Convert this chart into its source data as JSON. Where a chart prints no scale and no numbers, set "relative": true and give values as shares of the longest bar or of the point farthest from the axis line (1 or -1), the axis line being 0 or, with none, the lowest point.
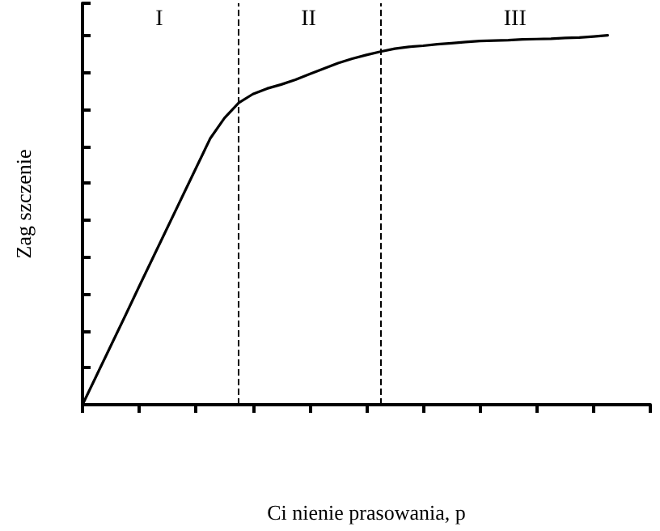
{
  "chart_data": {
    "type": "line",
    "relative": true,
    "xlabel": "Ci nienie prasowania, p",
    "ylabel": "Zag szczenie",
    "line_style": "solid",
    "categories": [
      null,
      null,
      null,
      null,
      null,
      null,
      null,
      null,
      null,
      null,
      null,
      null,
      null,
      null,
      null,
      null,
      null,
      null,
      null,
      null,
      null,
      null,
      null,
      null,
      null,
      null,
      null,
      null,
      null,
      null,
      null,
      null,
      null,
      null,
      null,
      null,
      null,
      null,
      null,
      null,
      null
    ],
    "series": [
      {
        "color": "#000000",
        "values": [
          0,
          0.08,
          0.16,
          0.24,
          0.321,
          0.401,
          0.481,
          0.561,
          0.641,
          0.721,
          0.776,
          0.817,
          0.841,
          0.856,
          0.867,
          0.88,
          0.895,
          0.91,
          0.925,
          0.937,
          0.947,
          0.956,
          0.964,
          0.969,
          0.972,
          0.976,
          0.979,
          0.982,
          0.985,
          0.986,
          0.987,
          0.989,
          0.99,
          0.991,
          0.993,
          0.994,
          0.997,
          1,
          null,
          null,
          null
        ]
      }
    ],
    "annotations": [
      "I",
      "II",
      "III"
    ]
  }
}
